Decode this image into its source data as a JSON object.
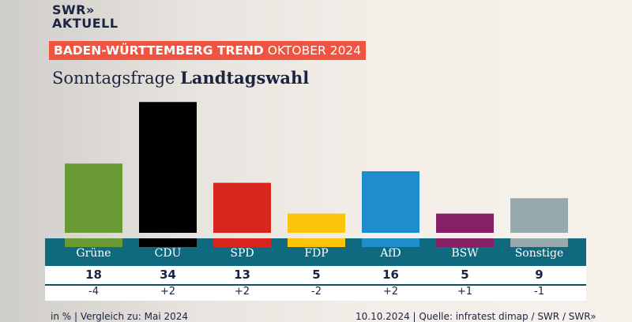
{
  "logo": {
    "line1": "SWR»",
    "line2": "AKTUELL"
  },
  "banner": {
    "bold": "BADEN-WÜRTTEMBERG TREND",
    "rest": "OKTOBER 2024"
  },
  "title": {
    "normal": "Sonntagsfrage",
    "bold": "Landtagswahl"
  },
  "chart_data": {
    "type": "bar",
    "categories": [
      "Grüne",
      "CDU",
      "SPD",
      "FDP",
      "AfD",
      "BSW",
      "Sonstige"
    ],
    "values": [
      18,
      34,
      13,
      5,
      16,
      5,
      9
    ],
    "changes": [
      "-4",
      "+2",
      "+2",
      "-2",
      "+2",
      "+1",
      "-1"
    ],
    "colors": [
      "#6a9a34",
      "#000000",
      "#d8261f",
      "#fcc50a",
      "#1f8ccc",
      "#861f63",
      "#98a9ae"
    ],
    "unit": "in %"
  },
  "footer": {
    "left": "in % | Vergleich zu: Mai 2024",
    "right": "10.10.2024 | Quelle: infratest dimap / SWR / SWR»"
  }
}
